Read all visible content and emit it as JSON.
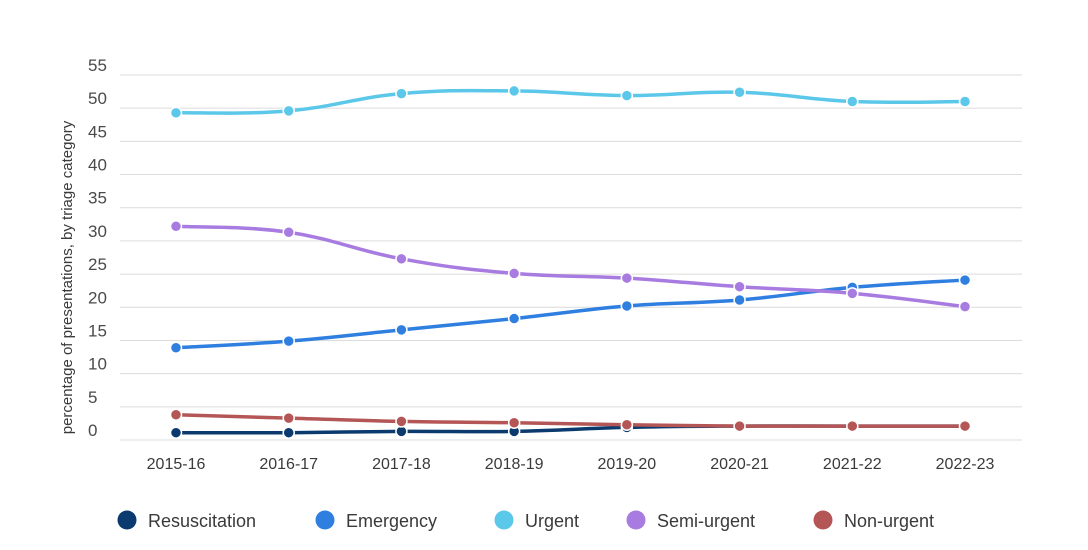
{
  "chart_data": {
    "type": "line",
    "title": "",
    "xlabel": "",
    "ylabel": "percentage of presentations, by triage category",
    "categories": [
      "2015-16",
      "2016-17",
      "2017-18",
      "2018-19",
      "2019-20",
      "2020-21",
      "2021-22",
      "2022-23"
    ],
    "yticks": [
      "0",
      "5",
      "10",
      "15",
      "20",
      "25",
      "30",
      "35",
      "40",
      "45",
      "50",
      "55"
    ],
    "ylim": [
      0,
      55
    ],
    "grid": true,
    "legend_position": "bottom",
    "series": [
      {
        "name": "Resuscitation",
        "color": "#0b3a6e",
        "values": [
          1.1,
          1.1,
          1.3,
          1.3,
          1.9,
          2.1,
          2.1,
          2.1
        ]
      },
      {
        "name": "Emergency",
        "color": "#2f7fe0",
        "values": [
          13.9,
          14.9,
          16.6,
          18.3,
          20.2,
          21.1,
          23.0,
          24.1
        ]
      },
      {
        "name": "Urgent",
        "color": "#5bc8ea",
        "values": [
          49.3,
          49.6,
          52.2,
          52.6,
          51.9,
          52.4,
          51.0,
          51.0
        ]
      },
      {
        "name": "Semi-urgent",
        "color": "#a77be0",
        "values": [
          32.2,
          31.3,
          27.3,
          25.1,
          24.4,
          23.1,
          22.1,
          20.1
        ]
      },
      {
        "name": "Non-urgent",
        "color": "#b55656",
        "values": [
          3.8,
          3.3,
          2.8,
          2.6,
          2.3,
          2.1,
          2.1,
          2.1
        ]
      }
    ]
  }
}
